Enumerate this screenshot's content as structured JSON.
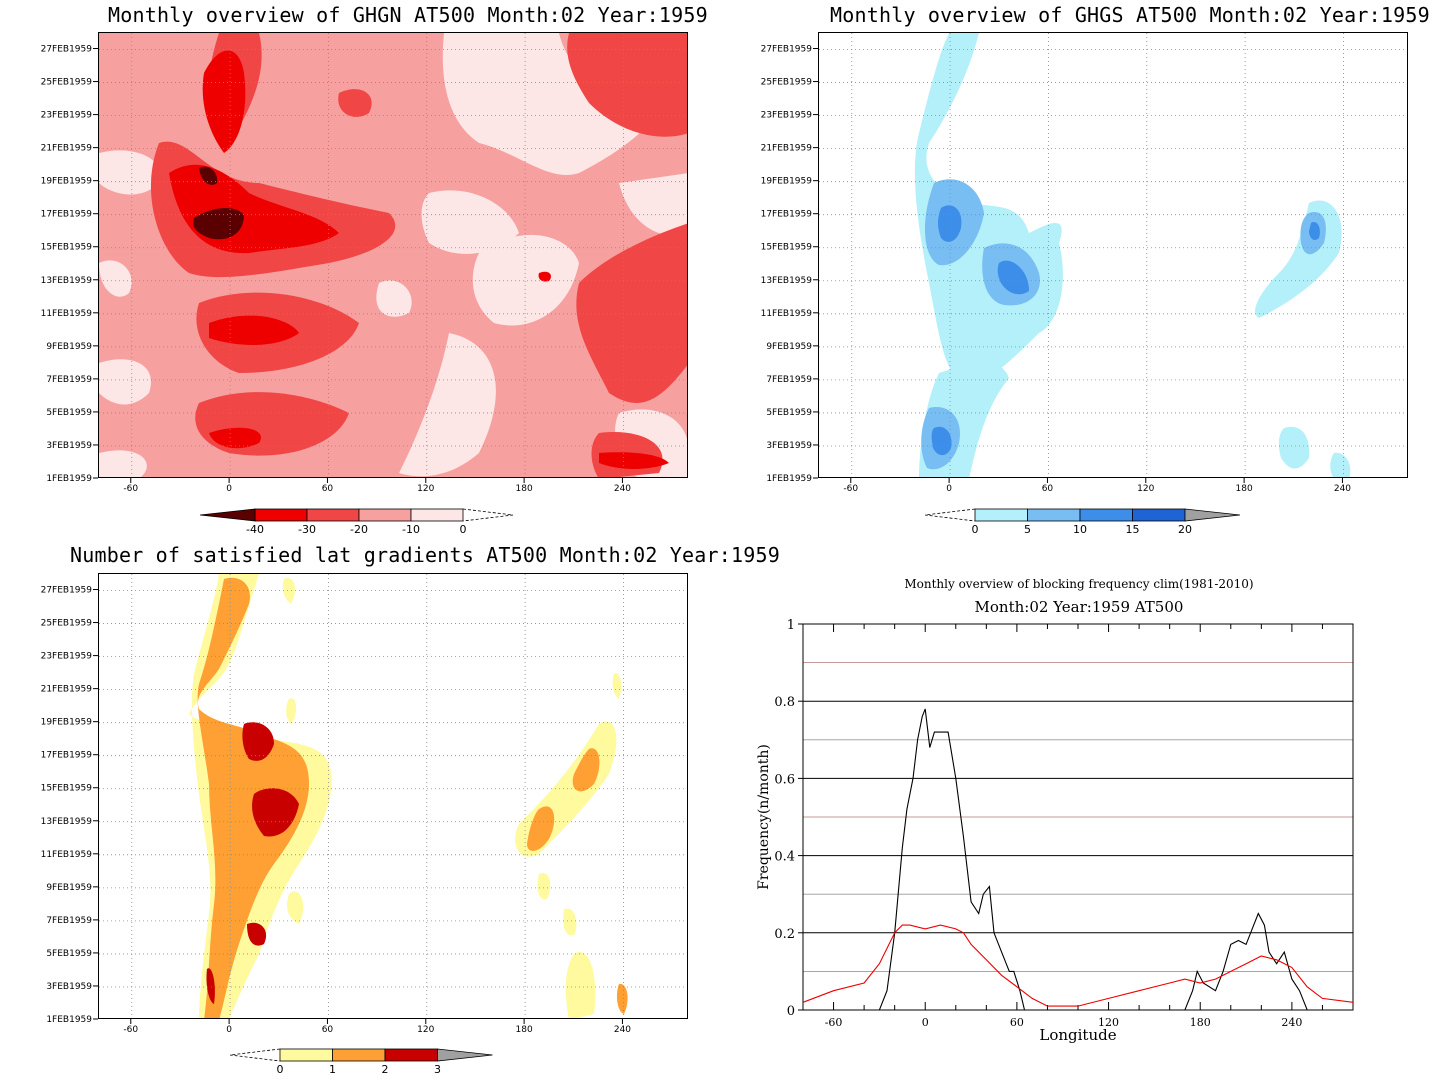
{
  "panels": {
    "ghgn": {
      "title": "Monthly overview of GHGN AT500 Month:02 Year:1959",
      "colorbar": {
        "ticks": [
          "-40",
          "-30",
          "-20",
          "-10",
          "0"
        ],
        "colors": [
          "#5a0000",
          "#ee0000",
          "#f04646",
          "#f6a0a0",
          "#fce6e6"
        ]
      }
    },
    "ghgs": {
      "title": "Monthly overview of GHGS AT500 Month:02 Year:1959",
      "colorbar": {
        "ticks": [
          "0",
          "5",
          "10",
          "15",
          "20"
        ],
        "colors": [
          "#b4f0fa",
          "#78bef2",
          "#3c8ee8",
          "#1e64d2",
          "#a0a0a0"
        ]
      }
    },
    "lat": {
      "title": "Number of satisfied lat gradients AT500 Month:02 Year:1959",
      "colorbar": {
        "ticks": [
          "0",
          "1",
          "2",
          "3"
        ],
        "colors": [
          "#fffa9e",
          "#fea034",
          "#c80000",
          "#a0a0a0"
        ]
      }
    },
    "freq": {
      "title1": "Monthly overview of blocking frequency clim(1981-2010)",
      "title2": "Month:02 Year:1959  AT500"
    }
  },
  "axes": {
    "x_ticks": [
      "-60",
      "0",
      "60",
      "120",
      "180",
      "240"
    ],
    "y_ticks": [
      "1FEB1959",
      "3FEB1959",
      "5FEB1959",
      "7FEB1959",
      "9FEB1959",
      "11FEB1959",
      "13FEB1959",
      "15FEB1959",
      "17FEB1959",
      "19FEB1959",
      "21FEB1959",
      "23FEB1959",
      "25FEB1959",
      "27FEB1959"
    ]
  },
  "chart_data": [
    {
      "type": "heatmap",
      "title": "Monthly overview of GHGN AT500 Month:02 Year:1959",
      "x_range": [
        -80,
        280
      ],
      "y_range": [
        "1FEB1959",
        "28FEB1959"
      ],
      "levels": [
        -40,
        -30,
        -20,
        -10,
        0
      ]
    },
    {
      "type": "heatmap",
      "title": "Monthly overview of GHGS AT500 Month:02 Year:1959",
      "x_range": [
        -80,
        280
      ],
      "y_range": [
        "1FEB1959",
        "28FEB1959"
      ],
      "levels": [
        0,
        5,
        10,
        15,
        20
      ]
    },
    {
      "type": "heatmap",
      "title": "Number of satisfied lat gradients AT500 Month:02 Year:1959",
      "x_range": [
        -80,
        280
      ],
      "y_range": [
        "1FEB1959",
        "28FEB1959"
      ],
      "levels": [
        0,
        1,
        2,
        3
      ]
    },
    {
      "type": "line",
      "title": "Monthly overview of blocking frequency clim(1981-2010)",
      "subtitle": "Month:02 Year:1959  AT500",
      "xlabel": "Longitude",
      "ylabel": "Frequency(n/month)",
      "xlim": [
        -80,
        280
      ],
      "ylim": [
        0,
        1
      ],
      "x_ticks": [
        "-60",
        "0",
        "60",
        "120",
        "180",
        "240"
      ],
      "y_ticks": [
        "0",
        "0.2",
        "0.4",
        "0.6",
        "0.8",
        "1"
      ],
      "grid": true,
      "series": [
        {
          "color": "#000000",
          "x": [
            -80,
            -30,
            -25,
            -20,
            -15,
            -12,
            -8,
            -5,
            -2,
            0,
            3,
            6,
            10,
            15,
            20,
            25,
            30,
            35,
            38,
            42,
            45,
            50,
            55,
            58,
            62,
            65,
            70,
            170,
            175,
            178,
            182,
            190,
            195,
            200,
            205,
            210,
            215,
            218,
            222,
            225,
            230,
            235,
            240,
            245,
            250,
            280
          ],
          "y": [
            0,
            0,
            0.05,
            0.2,
            0.42,
            0.52,
            0.6,
            0.7,
            0.76,
            0.78,
            0.68,
            0.72,
            0.72,
            0.72,
            0.6,
            0.45,
            0.28,
            0.25,
            0.3,
            0.32,
            0.2,
            0.15,
            0.1,
            0.1,
            0.05,
            0,
            0,
            0,
            0.05,
            0.1,
            0.07,
            0.05,
            0.1,
            0.17,
            0.18,
            0.17,
            0.22,
            0.25,
            0.22,
            0.15,
            0.12,
            0.15,
            0.08,
            0.05,
            0,
            0
          ]
        },
        {
          "color": "#ee0000",
          "x": [
            -80,
            -60,
            -40,
            -30,
            -20,
            -15,
            -10,
            0,
            10,
            20,
            25,
            30,
            40,
            50,
            60,
            70,
            80,
            100,
            120,
            140,
            160,
            170,
            180,
            190,
            200,
            210,
            220,
            230,
            240,
            250,
            260,
            280
          ],
          "y": [
            0.02,
            0.05,
            0.07,
            0.12,
            0.2,
            0.22,
            0.22,
            0.21,
            0.22,
            0.21,
            0.2,
            0.17,
            0.13,
            0.09,
            0.06,
            0.03,
            0.01,
            0.01,
            0.03,
            0.05,
            0.07,
            0.08,
            0.07,
            0.08,
            0.1,
            0.12,
            0.14,
            0.13,
            0.11,
            0.06,
            0.03,
            0.02
          ]
        }
      ]
    }
  ]
}
